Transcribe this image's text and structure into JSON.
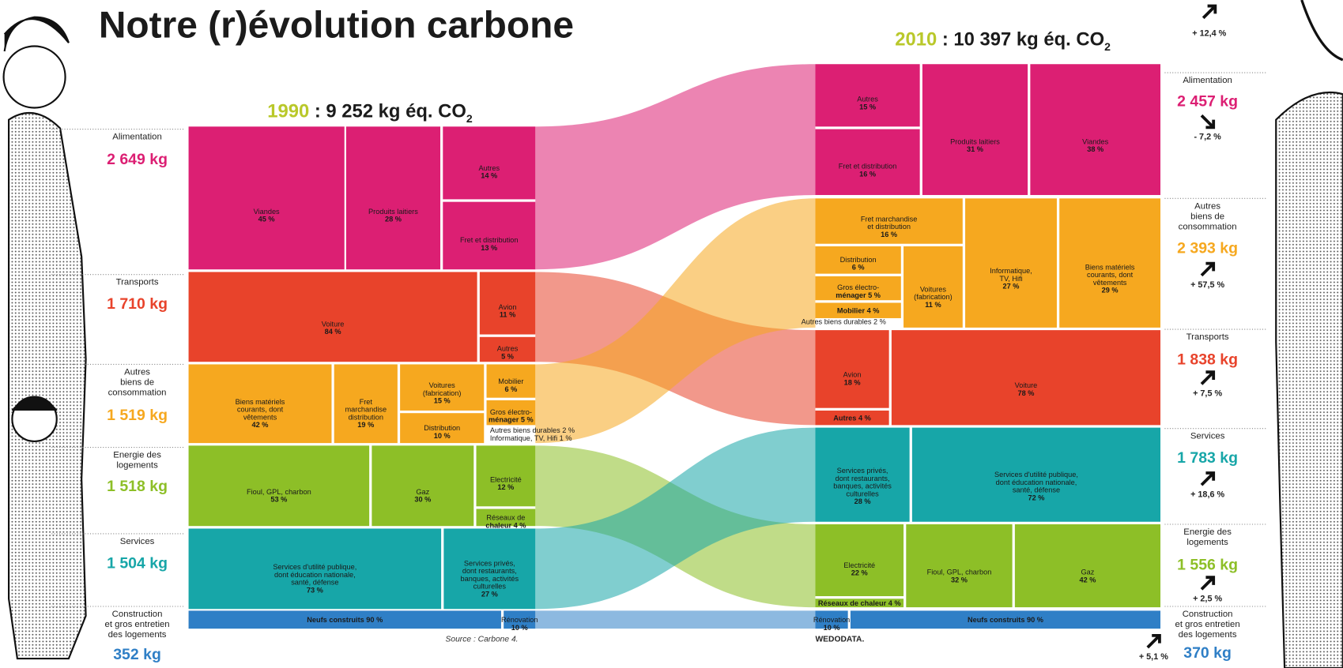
{
  "title": "Notre (r)évolution carbone",
  "top_change": "+ 12,4 %",
  "left": {
    "year": "1990",
    "total": " : 9 252 kg éq. CO",
    "sub": "2",
    "categories": [
      {
        "name": [
          "Alimentation"
        ],
        "amount": "2 649 kg",
        "segments": [
          [
            "Viandes",
            "45 %"
          ],
          [
            "Produits laitiers",
            "28 %"
          ],
          [
            "Autres",
            "14 %"
          ],
          [
            "Fret et distribution",
            "13 %"
          ]
        ]
      },
      {
        "name": [
          "Transports"
        ],
        "amount": "1 710 kg",
        "segments": [
          [
            "Voiture",
            "84 %"
          ],
          [
            "Avion",
            "11 %"
          ],
          [
            "Autres",
            "5 %"
          ]
        ]
      },
      {
        "name": [
          "Autres",
          "biens de",
          "consommation"
        ],
        "amount": "1 519 kg",
        "segments": [
          [
            "Biens matériels",
            "courants, dont",
            "vêtements",
            "42 %"
          ],
          [
            "Fret",
            "marchandise",
            "distribution",
            "19 %"
          ],
          [
            "Voitures",
            "(fabrication)",
            "15 %"
          ],
          [
            "Distribution",
            "10 %"
          ],
          [
            "Mobilier",
            "6 %"
          ],
          [
            "Gros électro-",
            "ménager 5 %"
          ]
        ],
        "notes": [
          "Autres biens durables 2 %",
          "Informatique, TV, Hifi 1 %"
        ]
      },
      {
        "name": [
          "Energie des",
          "logements"
        ],
        "amount": "1 518 kg",
        "segments": [
          [
            "Fioul, GPL, charbon",
            "53 %"
          ],
          [
            "Gaz",
            "30 %"
          ],
          [
            "Electricité",
            "12 %"
          ],
          [
            "Réseaux de",
            "chaleur 4 %"
          ]
        ]
      },
      {
        "name": [
          "Services"
        ],
        "amount": "1 504 kg",
        "segments": [
          [
            "Services d'utilité publique,",
            "dont éducation nationale,",
            "santé, défense",
            "73 %"
          ],
          [
            "Services privés,",
            "dont restaurants,",
            "banques, activités",
            "culturelles",
            "27 %"
          ]
        ]
      },
      {
        "name": [
          "Construction",
          "et gros entretien",
          "des logements"
        ],
        "amount": "352 kg",
        "segments": [
          [
            "Neufs construits 90 %"
          ],
          [
            "Rénovation",
            "10 %"
          ]
        ]
      }
    ]
  },
  "right": {
    "year": "2010",
    "total": " : 10 397 kg éq. CO",
    "sub": "2",
    "categories": [
      {
        "name": [
          "Alimentation"
        ],
        "amount": "2 457 kg",
        "change": "- 7,2 %",
        "segments": [
          [
            "Autres",
            "15 %"
          ],
          [
            "Fret et distribution",
            "16 %"
          ],
          [
            "Produits laitiers",
            "31 %"
          ],
          [
            "Viandes",
            "38 %"
          ]
        ]
      },
      {
        "name": [
          "Autres",
          "biens de",
          "consommation"
        ],
        "amount": "2 393 kg",
        "change": "+ 57,5 %",
        "segments": [
          [
            "Fret marchandise",
            "et distribution",
            "16 %"
          ],
          [
            "Distribution",
            "6 %"
          ],
          [
            "Gros électro-",
            "ménager 5 %"
          ],
          [
            "Mobilier 4 %"
          ],
          [
            "Voitures",
            "(fabrication)",
            "11 %"
          ],
          [
            "Informatique,",
            "TV, Hifi",
            "27 %"
          ],
          [
            "Biens matériels",
            "courants, dont",
            "vêtements",
            "29 %"
          ]
        ],
        "notes": [
          "Autres biens durables 2 %"
        ]
      },
      {
        "name": [
          "Transports"
        ],
        "amount": "1 838 kg",
        "change": "+ 7,5 %",
        "segments": [
          [
            "Avion",
            "18 %"
          ],
          [
            "Autres 4 %"
          ],
          [
            "Voiture",
            "78 %"
          ]
        ]
      },
      {
        "name": [
          "Services"
        ],
        "amount": "1 783 kg",
        "change": "+ 18,6 %",
        "segments": [
          [
            "Services privés,",
            "dont restaurants,",
            "banques, activités",
            "culturelles",
            "28 %"
          ],
          [
            "Services d'utilité publique,",
            "dont éducation nationale,",
            "santé, défense",
            "72 %"
          ]
        ]
      },
      {
        "name": [
          "Energie des",
          "logements"
        ],
        "amount": "1 556 kg",
        "change": "+ 2,5 %",
        "segments": [
          [
            "Electricité",
            "22 %"
          ],
          [
            "Réseaux de chaleur 4 %"
          ],
          [
            "Fioul, GPL, charbon",
            "32 %"
          ],
          [
            "Gaz",
            "42 %"
          ]
        ]
      },
      {
        "name": [
          "Construction",
          "et gros entretien",
          "des logements"
        ],
        "amount": "370 kg",
        "change": "+ 5,1 %",
        "segments": [
          [
            "Rénovation",
            "10 %"
          ],
          [
            "Neufs construits 90 %"
          ]
        ]
      }
    ]
  },
  "source": "Source : Carbone 4.",
  "credit": "WEDODATA."
}
